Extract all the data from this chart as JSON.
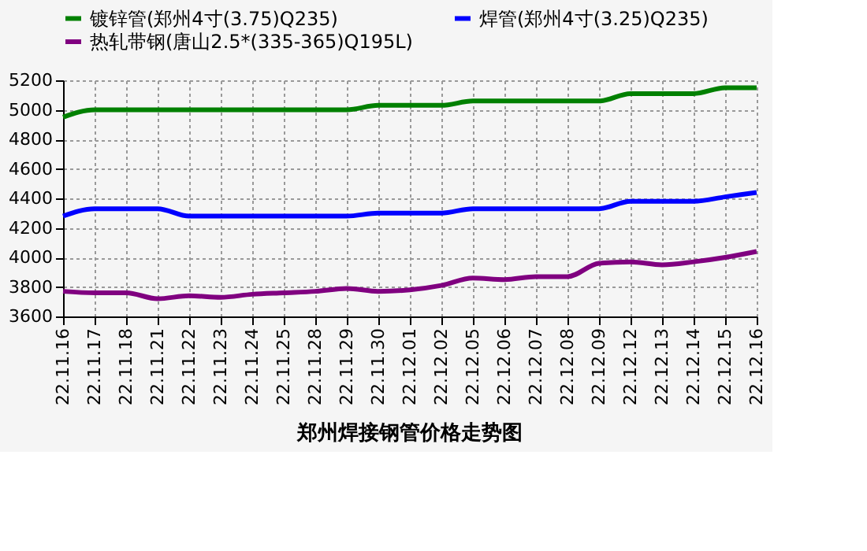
{
  "chart_data": {
    "type": "line",
    "title": "郑州焊接钢管价格走势图",
    "categories": [
      "22.11.16",
      "22.11.17",
      "22.11.18",
      "22.11.21",
      "22.11.22",
      "22.11.23",
      "22.11.24",
      "22.11.25",
      "22.11.28",
      "22.11.29",
      "22.11.30",
      "22.12.01",
      "22.12.02",
      "22.12.05",
      "22.12.06",
      "22.12.07",
      "22.12.08",
      "22.12.09",
      "22.12.12",
      "22.12.13",
      "22.12.14",
      "22.12.15",
      "22.12.16"
    ],
    "series": [
      {
        "name": "镀锌管(郑州4寸(3.75)Q235)",
        "color": "#008000",
        "values": [
          4950,
          5000,
          5000,
          5000,
          5000,
          5000,
          5000,
          5000,
          5000,
          5000,
          5030,
          5030,
          5030,
          5060,
          5060,
          5060,
          5060,
          5060,
          5110,
          5110,
          5110,
          5150,
          5150
        ]
      },
      {
        "name": "焊管(郑州4寸(3.25)Q235)",
        "color": "#0000ff",
        "values": [
          4280,
          4330,
          4330,
          4330,
          4280,
          4280,
          4280,
          4280,
          4280,
          4280,
          4300,
          4300,
          4300,
          4330,
          4330,
          4330,
          4330,
          4330,
          4380,
          4380,
          4380,
          4410,
          4440
        ]
      },
      {
        "name": "热轧带钢(唐山2.5*(335-365)Q195L)",
        "color": "#800080",
        "values": [
          3770,
          3760,
          3760,
          3720,
          3740,
          3730,
          3750,
          3760,
          3770,
          3790,
          3770,
          3780,
          3810,
          3860,
          3850,
          3870,
          3870,
          3960,
          3970,
          3950,
          3970,
          4000,
          4040
        ]
      }
    ],
    "ylim": [
      3600,
      5200
    ],
    "yticks": [
      3600,
      3800,
      4000,
      4200,
      4400,
      4600,
      4800,
      5000,
      5200
    ],
    "grid": true,
    "legend": "top",
    "line_style": "solid",
    "marker": "none"
  }
}
